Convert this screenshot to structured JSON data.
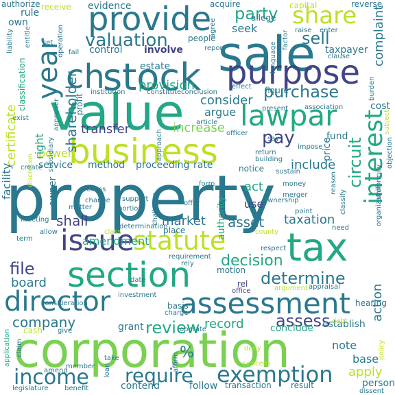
{
  "words": [
    {
      "text": "property",
      "color": "#2a788e"
    },
    {
      "text": "corporation",
      "color": "#7ad151"
    },
    {
      "text": "value",
      "color": "#22a884"
    },
    {
      "text": "sale",
      "color": "#2a788e"
    },
    {
      "text": "purpose",
      "color": "#414487"
    },
    {
      "text": "stock",
      "color": "#2a788e"
    },
    {
      "text": "business",
      "color": "#bddf26"
    },
    {
      "text": "provide",
      "color": "#2a788e"
    },
    {
      "text": "tax",
      "color": "#22a884"
    },
    {
      "text": "section",
      "color": "#22a884"
    },
    {
      "text": "issue",
      "color": "#414487"
    },
    {
      "text": "assessment",
      "color": "#2a788e"
    },
    {
      "text": "director",
      "color": "#2a788e"
    },
    {
      "text": "statute",
      "color": "#bddf26"
    },
    {
      "text": "lawpar",
      "color": "#22a884"
    },
    {
      "text": "interest",
      "color": "#22a884"
    },
    {
      "text": "year",
      "color": "#2a788e"
    },
    {
      "text": "ch",
      "color": "#2a788e"
    },
    {
      "text": "share",
      "color": "#bddf26"
    },
    {
      "text": "income",
      "color": "#2a788e"
    },
    {
      "text": "exemption",
      "color": "#2a788e"
    },
    {
      "text": "require",
      "color": "#2a788e"
    },
    {
      "text": "valuation",
      "color": "#2a788e"
    },
    {
      "text": "determine",
      "color": "#2a788e"
    },
    {
      "text": "review",
      "color": "#22a884"
    },
    {
      "text": "assess",
      "color": "#414487"
    },
    {
      "text": "purchase",
      "color": "#2a788e"
    },
    {
      "text": "party",
      "color": "#22a884"
    },
    {
      "text": "sell",
      "color": "#2a788e"
    },
    {
      "text": "pay",
      "color": "#414487"
    },
    {
      "text": "file",
      "color": "#414487"
    },
    {
      "text": "decision",
      "color": "#22a884"
    },
    {
      "text": "shareholder",
      "color": "#2a788e"
    },
    {
      "text": "company",
      "color": "#2a788e"
    },
    {
      "text": "circuit",
      "color": "#22a884"
    },
    {
      "text": "asset",
      "color": "#2a788e"
    },
    {
      "text": "shall",
      "color": "#414487"
    },
    {
      "text": "%",
      "color": "#2a788e"
    },
    {
      "text": "apply",
      "color": "#bddf26"
    },
    {
      "text": "board",
      "color": "#2a788e"
    },
    {
      "text": "taxation",
      "color": "#2a788e"
    },
    {
      "text": "provision",
      "color": "#22a884"
    },
    {
      "text": "increase",
      "color": "#7ad151"
    },
    {
      "text": "market",
      "color": "#2a788e"
    },
    {
      "text": "consider",
      "color": "#2a788e"
    },
    {
      "text": "transfer",
      "color": "#414487"
    },
    {
      "text": "include",
      "color": "#2a788e"
    },
    {
      "text": "amendment",
      "color": "#22a884"
    },
    {
      "text": "certificate",
      "color": "#bddf26"
    },
    {
      "text": "facility",
      "color": "#2a788e"
    },
    {
      "text": "record",
      "color": "#22a884"
    },
    {
      "text": "complaint",
      "color": "#2a788e"
    },
    {
      "text": "base",
      "color": "#2a788e"
    },
    {
      "text": "act",
      "color": "#22a884"
    },
    {
      "text": "argue",
      "color": "#2a788e"
    },
    {
      "text": "note",
      "color": "#2a788e"
    },
    {
      "text": "action",
      "color": "#2a788e"
    },
    {
      "text": "conclude",
      "color": "#22a884"
    },
    {
      "text": "establish",
      "color": "#2a788e"
    },
    {
      "text": "contend",
      "color": "#2a788e"
    },
    {
      "text": "proceeding",
      "color": "#2a788e"
    },
    {
      "text": "use",
      "color": "#414487"
    },
    {
      "text": "power",
      "color": "#bddf26"
    },
    {
      "text": "right",
      "color": "#22a884"
    },
    {
      "text": "method",
      "color": "#2a788e"
    },
    {
      "text": "service",
      "color": "#2a788e"
    },
    {
      "text": "seek",
      "color": "#2a788e"
    },
    {
      "text": "control",
      "color": "#2a788e"
    },
    {
      "text": "involve",
      "color": "#414487"
    },
    {
      "text": "estate",
      "color": "#2a788e"
    },
    {
      "text": "evidence",
      "color": "#2a788e"
    },
    {
      "text": "people",
      "color": "#2a788e"
    },
    {
      "text": "grant",
      "color": "#2a788e"
    },
    {
      "text": "follow",
      "color": "#2a788e"
    },
    {
      "text": "transaction",
      "color": "#2a788e"
    },
    {
      "text": "person",
      "color": "#2a788e"
    },
    {
      "text": "rate",
      "color": "#2a788e"
    },
    {
      "text": "notice",
      "color": "#2a788e"
    },
    {
      "text": "authority",
      "color": "#22a884"
    },
    {
      "text": "fund",
      "color": "#2a788e"
    },
    {
      "text": "price",
      "color": "#2a788e"
    },
    {
      "text": "cost",
      "color": "#2a788e"
    },
    {
      "text": "taxpayer",
      "color": "#2a788e"
    },
    {
      "text": "own",
      "color": "#2a788e"
    },
    {
      "text": "rule",
      "color": "#2a788e"
    },
    {
      "text": "receive",
      "color": "#bddf26"
    },
    {
      "text": "authorize",
      "color": "#2a788e"
    },
    {
      "text": "acquire",
      "color": "#2a788e"
    },
    {
      "text": "allege",
      "color": "#2a788e"
    },
    {
      "text": "capital",
      "color": "#bddf26"
    },
    {
      "text": "reverse",
      "color": "#2a788e"
    },
    {
      "text": "raise",
      "color": "#2a788e"
    },
    {
      "text": "enter",
      "color": "#2a788e"
    },
    {
      "text": "profit",
      "color": "#2a788e"
    },
    {
      "text": "classification",
      "color": "#22a884"
    },
    {
      "text": "discretion",
      "color": "#bddf26"
    },
    {
      "text": "owner",
      "color": "#2a788e"
    },
    {
      "text": "process",
      "color": "#2a788e"
    },
    {
      "text": "matter",
      "color": "#2a788e"
    },
    {
      "text": "support",
      "color": "#2a788e"
    },
    {
      "text": "portion",
      "color": "#2a788e"
    },
    {
      "text": "ownership",
      "color": "#2a788e"
    },
    {
      "text": "point",
      "color": "#2a788e"
    },
    {
      "text": "merger",
      "color": "#2a788e"
    },
    {
      "text": "money",
      "color": "#2a788e"
    },
    {
      "text": "offer",
      "color": "#2a788e"
    },
    {
      "text": "meeting",
      "color": "#2a788e"
    },
    {
      "text": "term",
      "color": "#2a788e"
    },
    {
      "text": "allow",
      "color": "#2a788e"
    },
    {
      "text": "class",
      "color": "#bddf26"
    },
    {
      "text": "place",
      "color": "#2a788e"
    },
    {
      "text": "county",
      "color": "#bddf26"
    },
    {
      "text": "motion",
      "color": "#2a788e"
    },
    {
      "text": "rel",
      "color": "#414487"
    },
    {
      "text": "office",
      "color": "#414487"
    },
    {
      "text": "argument",
      "color": "#bddf26"
    },
    {
      "text": "appraisal",
      "color": "#2a788e"
    },
    {
      "text": "hearing",
      "color": "#2a788e"
    },
    {
      "text": "consideration",
      "color": "#2a788e"
    },
    {
      "text": "investment",
      "color": "#2a788e"
    },
    {
      "text": "basis",
      "color": "#2a788e"
    },
    {
      "text": "charge",
      "color": "#2a788e"
    },
    {
      "text": "operate",
      "color": "#2a788e"
    },
    {
      "text": "cash",
      "color": "#bddf26"
    },
    {
      "text": "give",
      "color": "#2a788e"
    },
    {
      "text": "claim",
      "color": "#2a788e"
    },
    {
      "text": "amend",
      "color": "#2a788e"
    },
    {
      "text": "member",
      "color": "#2a788e"
    },
    {
      "text": "legislature",
      "color": "#2a788e"
    },
    {
      "text": "benefit",
      "color": "#2a788e"
    },
    {
      "text": "loan",
      "color": "#2a788e"
    },
    {
      "text": "result",
      "color": "#2a788e"
    },
    {
      "text": "concern",
      "color": "#bddf26"
    },
    {
      "text": "deny",
      "color": "#bddf26"
    },
    {
      "text": "debt",
      "color": "#bddf26"
    },
    {
      "text": "policy",
      "color": "#bddf26"
    },
    {
      "text": "application",
      "color": "#22a884"
    },
    {
      "text": "requirement",
      "color": "#2a788e"
    },
    {
      "text": "rely",
      "color": "#2a788e"
    },
    {
      "text": "respect",
      "color": "#2a788e"
    },
    {
      "text": "need",
      "color": "#2a788e"
    },
    {
      "text": "classify",
      "color": "#2a788e"
    },
    {
      "text": "reason",
      "color": "#2a788e"
    },
    {
      "text": "organization",
      "color": "#2a788e"
    },
    {
      "text": "uniformity",
      "color": "#2a788e"
    },
    {
      "text": "subject",
      "color": "#bddf26"
    },
    {
      "text": "objection",
      "color": "#2a788e"
    },
    {
      "text": "association",
      "color": "#2a788e"
    },
    {
      "text": "present",
      "color": "#2a788e"
    },
    {
      "text": "figure",
      "color": "#2a788e"
    },
    {
      "text": "effect",
      "color": "#2a788e"
    },
    {
      "text": "conclusion",
      "color": "#2a788e"
    },
    {
      "text": "institution",
      "color": "#2a788e"
    },
    {
      "text": "constitute",
      "color": "#2a788e"
    },
    {
      "text": "article",
      "color": "#2a788e"
    },
    {
      "text": "officer",
      "color": "#2a788e"
    },
    {
      "text": "return",
      "color": "#2a788e"
    },
    {
      "text": "building",
      "color": "#2a788e"
    },
    {
      "text": "impose",
      "color": "#2a788e"
    },
    {
      "text": "approach",
      "color": "#2a788e"
    },
    {
      "text": "exist",
      "color": "#2a788e"
    },
    {
      "text": "create",
      "color": "#2a788e"
    },
    {
      "text": "subsidiary",
      "color": "#2a788e"
    },
    {
      "text": "appraiser",
      "color": "#2a788e"
    },
    {
      "text": "challenge",
      "color": "#2a788e"
    },
    {
      "text": "change",
      "color": "#2a788e"
    },
    {
      "text": "determination",
      "color": "#2a788e"
    },
    {
      "text": "form",
      "color": "#2a788e"
    },
    {
      "text": "operation",
      "color": "#2a788e"
    },
    {
      "text": "fail",
      "color": "#2a788e"
    },
    {
      "text": "report",
      "color": "#2a788e"
    },
    {
      "text": "clause",
      "color": "#2a788e"
    },
    {
      "text": "factor",
      "color": "#2a788e"
    },
    {
      "text": "language",
      "color": "#2a788e"
    },
    {
      "text": "burden",
      "color": "#2a788e"
    },
    {
      "text": "date",
      "color": "#2a788e"
    },
    {
      "text": "set",
      "color": "#2a788e"
    },
    {
      "text": "liability",
      "color": "#2a788e"
    },
    {
      "text": "entitle",
      "color": "#2a788e"
    },
    {
      "text": "affirm",
      "color": "#2a788e"
    },
    {
      "text": "take",
      "color": "#2a788e"
    },
    {
      "text": "say",
      "color": "#2a788e"
    },
    {
      "text": "agree",
      "color": "#2a788e"
    },
    {
      "text": "sustain",
      "color": "#2a788e"
    },
    {
      "text": "dissent",
      "color": "#2a788e"
    }
  ]
}
